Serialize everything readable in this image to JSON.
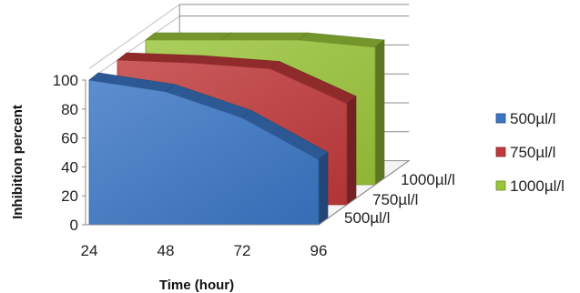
{
  "chart_data": {
    "type": "area",
    "variant": "3d-area",
    "xlabel": "Time (hour)",
    "ylabel": "Inhibition percent",
    "categories": [
      "24",
      "48",
      "72",
      "96"
    ],
    "ylim": [
      0,
      100
    ],
    "yticks": [
      0,
      20,
      40,
      60,
      80,
      100
    ],
    "depth_labels": [
      "500µl/l",
      "750µl/l",
      "1000µl/l"
    ],
    "series": [
      {
        "name": "500µl/l",
        "values": [
          100,
          92,
          74,
          45
        ],
        "color": "#3a75c4"
      },
      {
        "name": "750µl/l",
        "values": [
          100,
          98,
          94,
          70
        ],
        "color": "#c0393b"
      },
      {
        "name": "1000µl/l",
        "values": [
          100,
          100,
          100,
          95
        ],
        "color": "#9ac53a"
      }
    ],
    "legend_position": "right",
    "grid": true
  }
}
